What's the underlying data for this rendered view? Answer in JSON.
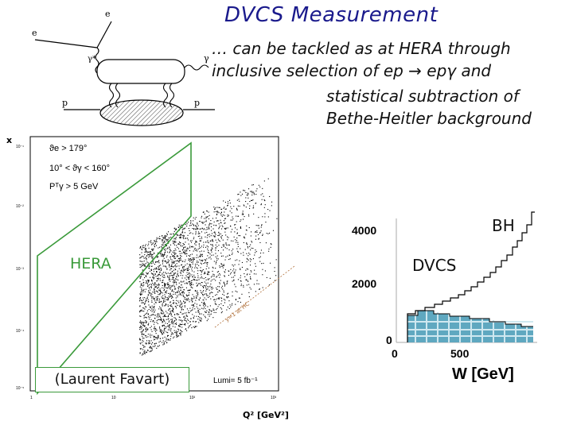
{
  "slide": {
    "title": "DVCS Measurement",
    "text_lines": [
      "… can be tackled as at HERA through",
      "inclusive selection of ep → epγ and",
      "statistical subtraction of",
      "Bethe-Heitler background"
    ],
    "credit": "(Laurent Favart)"
  },
  "feynman": {
    "labels": [
      "e",
      "e",
      "γ*",
      "γ",
      "p",
      "p"
    ]
  },
  "kin_plot": {
    "y_axis_label": "x",
    "x_axis_label": "Q² [GeV²]",
    "x_ticks": [
      "1",
      "10",
      "10²",
      "10³"
    ],
    "y_ticks": [
      "10⁻¹",
      "10⁻²",
      "10⁻³",
      "10⁻⁴",
      "10⁻⁵"
    ],
    "cuts": [
      "ϑe > 179°",
      "10° < ϑγ < 160°",
      "Pᵀγ > 5 GeV"
    ],
    "hera_label": "HERA",
    "y_line_label": "y=1 at HC",
    "lumi": "Lumi= 5 fb⁻¹",
    "hera_color": "#3a9a3a",
    "label_color": "#3a9a3a"
  },
  "w_plot": {
    "x_axis_label": "W [GeV]",
    "y_ticks": [
      "4000",
      "2000",
      "0"
    ],
    "x_ticks": [
      "0",
      "500"
    ],
    "bh_label": "BH",
    "dvcs_label": "DVCS",
    "fill_color": "#5fa8c0"
  }
}
